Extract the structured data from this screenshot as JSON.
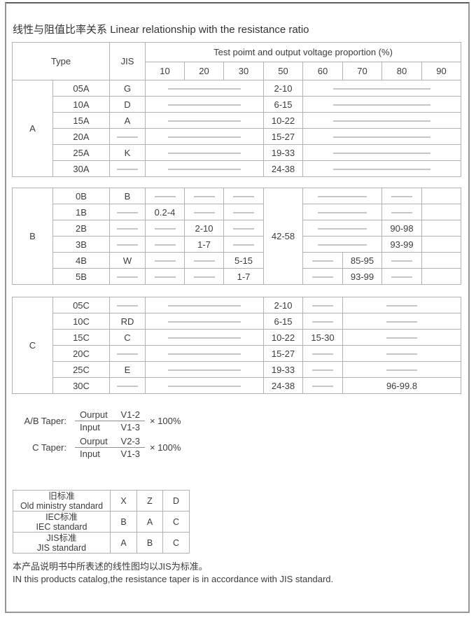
{
  "page": {
    "title_zh": "线性与阻值比率关系",
    "title_en": "Linear relationship with the resistance ratio",
    "footer_zh": "本产品说明书中所表述的线性图均以JIS为标准。",
    "footer_en": "IN this products catalog,the resistance taper is in accordance with JIS standard."
  },
  "main_table": {
    "header": {
      "type_label": "Type",
      "jis_label": "JIS",
      "test_label": "Test poimt and output voltage proportion (%)",
      "points": [
        "10",
        "20",
        "30",
        "50",
        "60",
        "70",
        "80",
        "90"
      ]
    },
    "sections": [
      {
        "group": "A",
        "rows": [
          {
            "type": "05A",
            "jis": "G",
            "cells": [
              {
                "span": 3,
                "d": "long"
              },
              {
                "v": "2-10"
              },
              {
                "span": 4,
                "d": "long"
              }
            ]
          },
          {
            "type": "10A",
            "jis": "D",
            "cells": [
              {
                "span": 3,
                "d": "long"
              },
              {
                "v": "6-15"
              },
              {
                "span": 4,
                "d": "long"
              }
            ]
          },
          {
            "type": "15A",
            "jis": "A",
            "cells": [
              {
                "span": 3,
                "d": "long"
              },
              {
                "v": "10-22"
              },
              {
                "span": 4,
                "d": "long"
              }
            ]
          },
          {
            "type": "20A",
            "jis": "",
            "cells": [
              {
                "span": 3,
                "d": "long"
              },
              {
                "v": "15-27"
              },
              {
                "span": 4,
                "d": "long"
              }
            ]
          },
          {
            "type": "25A",
            "jis": "K",
            "cells": [
              {
                "span": 3,
                "d": "long"
              },
              {
                "v": "19-33"
              },
              {
                "span": 4,
                "d": "long"
              }
            ]
          },
          {
            "type": "30A",
            "jis": "",
            "cells": [
              {
                "span": 3,
                "d": "long"
              },
              {
                "v": "24-38"
              },
              {
                "span": 4,
                "d": "long"
              }
            ]
          }
        ]
      },
      {
        "group": "B",
        "rows": [
          {
            "type": "0B",
            "jis": "B",
            "cells": [
              {
                "d": "short"
              },
              {
                "d": "short"
              },
              {
                "d": "short"
              },
              {
                "rows": 6,
                "v": "42-58"
              },
              {
                "span": 2,
                "d": "long"
              },
              {
                "d": "short"
              },
              {}
            ]
          },
          {
            "type": "1B",
            "jis": "",
            "cells": [
              {
                "v": "0.2-4"
              },
              {
                "d": "short"
              },
              {
                "d": "short"
              },
              {
                "span": 2,
                "d": "long"
              },
              {
                "d": "short"
              },
              {}
            ]
          },
          {
            "type": "2B",
            "jis": "",
            "cells": [
              {
                "d": "short"
              },
              {
                "v": "2-10"
              },
              {
                "d": "short"
              },
              {
                "span": 2,
                "d": "long"
              },
              {
                "v": "90-98"
              },
              {}
            ]
          },
          {
            "type": "3B",
            "jis": "",
            "cells": [
              {
                "d": "short"
              },
              {
                "v": "1-7"
              },
              {
                "d": "short"
              },
              {
                "span": 2,
                "d": "long"
              },
              {
                "v": "93-99"
              },
              {}
            ]
          },
          {
            "type": "4B",
            "jis": "W",
            "cells": [
              {
                "d": "short"
              },
              {
                "d": "short"
              },
              {
                "v": "5-15"
              },
              {
                "d": "short"
              },
              {
                "v": "85-95"
              },
              {
                "d": "short"
              },
              {}
            ]
          },
          {
            "type": "5B",
            "jis": "",
            "cells": [
              {
                "d": "short"
              },
              {
                "d": "short"
              },
              {
                "v": "1-7"
              },
              {
                "d": "short"
              },
              {
                "v": "93-99"
              },
              {
                "d": "short"
              },
              {}
            ]
          }
        ]
      },
      {
        "group": "C",
        "rows": [
          {
            "type": "05C",
            "jis": "",
            "cells": [
              {
                "span": 3,
                "d": "long"
              },
              {
                "v": "2-10"
              },
              {
                "d": "short"
              },
              {
                "span": 3,
                "d": "short"
              }
            ]
          },
          {
            "type": "10C",
            "jis": "RD",
            "cells": [
              {
                "span": 3,
                "d": "long"
              },
              {
                "v": "6-15"
              },
              {
                "d": "short"
              },
              {
                "span": 3,
                "d": "short"
              }
            ]
          },
          {
            "type": "15C",
            "jis": "C",
            "cells": [
              {
                "span": 3,
                "d": "long"
              },
              {
                "v": "10-22"
              },
              {
                "v": "15-30"
              },
              {
                "span": 3,
                "d": "short"
              }
            ]
          },
          {
            "type": "20C",
            "jis": "",
            "cells": [
              {
                "span": 3,
                "d": "long"
              },
              {
                "v": "15-27"
              },
              {
                "d": "short"
              },
              {
                "span": 3,
                "d": "short"
              }
            ]
          },
          {
            "type": "25C",
            "jis": "E",
            "cells": [
              {
                "span": 3,
                "d": "long"
              },
              {
                "v": "19-33"
              },
              {
                "d": "short"
              },
              {
                "span": 3,
                "d": "short"
              }
            ]
          },
          {
            "type": "30C",
            "jis": "",
            "cells": [
              {
                "span": 3,
                "d": "long"
              },
              {
                "v": "24-38"
              },
              {
                "d": "short"
              },
              {
                "span": 3,
                "v": "96-99.8"
              }
            ]
          }
        ]
      }
    ]
  },
  "formulas": [
    {
      "label": "A/B  Taper:",
      "num_word": "Ourput",
      "num_val": "V1-2",
      "den_word": "Input",
      "den_val": "V1-3",
      "mult": "× 100%"
    },
    {
      "label": "C  Taper:",
      "num_word": "Ourput",
      "num_val": "V2-3",
      "den_word": "Input",
      "den_val": "V1-3",
      "mult": "× 100%"
    }
  ],
  "standards": {
    "rows": [
      {
        "zh": "旧标准",
        "en": "Old ministry standard",
        "v1": "X",
        "v2": "Z",
        "v3": "D"
      },
      {
        "zh": "IEC标准",
        "en": "IEC standard",
        "v1": "B",
        "v2": "A",
        "v3": "C"
      },
      {
        "zh": "JIS标准",
        "en": "JIS standard",
        "v1": "A",
        "v2": "B",
        "v3": "C"
      }
    ]
  },
  "colors": {
    "border": "#b2b2b2",
    "dash": "#c6c6c6",
    "text": "#3c3c3c",
    "frame": "#979797"
  }
}
